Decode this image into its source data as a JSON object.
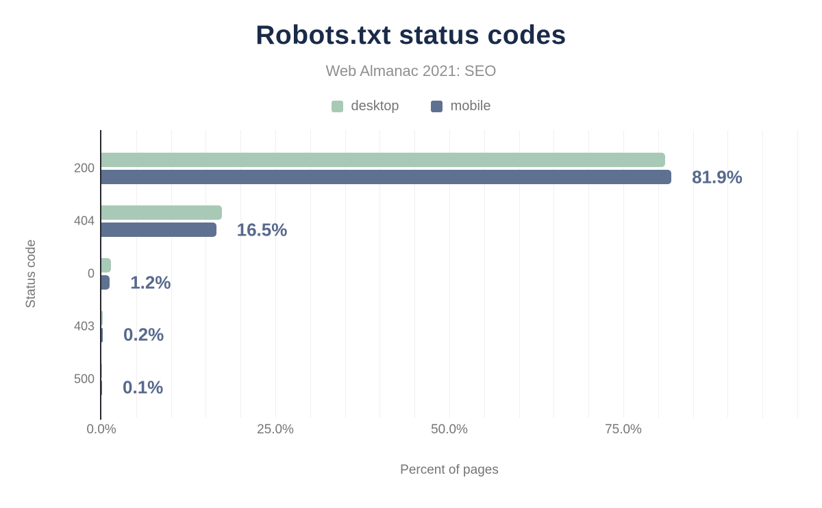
{
  "header": {
    "title": "Robots.txt status codes",
    "subtitle": "Web Almanac 2021: SEO"
  },
  "legend": {
    "items": [
      {
        "label": "desktop",
        "color": "#a9c9b7"
      },
      {
        "label": "mobile",
        "color": "#5f7191"
      }
    ]
  },
  "chart_data": {
    "type": "bar",
    "orientation": "horizontal",
    "title": "Robots.txt status codes",
    "subtitle": "Web Almanac 2021: SEO",
    "categories": [
      "200",
      "404",
      "0",
      "403",
      "500"
    ],
    "series": [
      {
        "name": "desktop",
        "color": "#a9c9b7",
        "values": [
          81.0,
          17.3,
          1.4,
          0.2,
          0.1
        ]
      },
      {
        "name": "mobile",
        "color": "#5f7191",
        "values": [
          81.9,
          16.5,
          1.2,
          0.2,
          0.1
        ]
      }
    ],
    "bar_labels": {
      "labeled_series": "mobile",
      "values": [
        "81.9%",
        "16.5%",
        "1.2%",
        "0.2%",
        "0.1%"
      ]
    },
    "xlabel": "Percent of pages",
    "ylabel": "Status code",
    "xlim": [
      0,
      100
    ],
    "x_ticks": [
      {
        "value": 0,
        "label": "0.0%"
      },
      {
        "value": 25,
        "label": "25.0%"
      },
      {
        "value": 50,
        "label": "50.0%"
      },
      {
        "value": 75,
        "label": "75.0%"
      }
    ],
    "grid": {
      "minor_step_percent": 5,
      "color": "#f1efee",
      "axis_line_color": "#25272e"
    },
    "label_color": "#57698c",
    "legend_position": "top"
  }
}
